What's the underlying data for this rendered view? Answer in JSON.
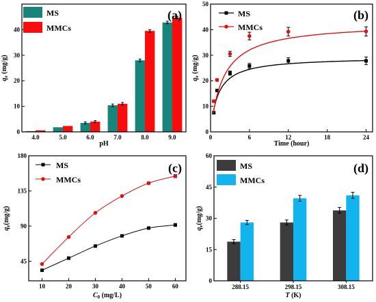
{
  "chart_data": [
    {
      "panel": "(a)",
      "type": "bar",
      "xlabel": "pH",
      "ylabel": "q_e (mg/g)",
      "ylabel_main": "q",
      "ylabel_sub": "e",
      "ylabel_rest": " (mg/g)",
      "ylim": [
        0,
        50
      ],
      "yticks": [
        0,
        10,
        20,
        30,
        40
      ],
      "categories": [
        "4.0",
        "5.0",
        "6.0",
        "7.0",
        "8.0",
        "9.0"
      ],
      "series": [
        {
          "name": "MS",
          "color": "#18847a",
          "values": [
            0.3,
            1.8,
            3.5,
            10.4,
            28.0,
            42.8
          ],
          "errors": [
            0,
            0,
            0.4,
            0.5,
            0.5,
            0.5
          ]
        },
        {
          "name": "MMCs",
          "color": "#f80c0c",
          "values": [
            0.6,
            2.3,
            4.0,
            11.0,
            39.5,
            44.7
          ],
          "errors": [
            0,
            0,
            0.4,
            0.5,
            0.5,
            0.5
          ]
        }
      ],
      "legend": "top-left",
      "grid": false
    },
    {
      "panel": "(b)",
      "type": "line",
      "xlabel": "Time (hour)",
      "ylabel": "q_e (mg/g)",
      "ylabel_main": "q",
      "ylabel_sub": "e",
      "ylabel_rest": " (mg/g)",
      "xlim": [
        0,
        25
      ],
      "ylim": [
        0,
        50
      ],
      "xticks": [
        0,
        6,
        12,
        18,
        24
      ],
      "yticks": [
        0,
        10,
        20,
        30,
        40,
        50
      ],
      "series": [
        {
          "name": "MS",
          "color": "#000000",
          "marker": "square",
          "x": [
            0.5,
            1,
            3,
            6,
            12,
            24
          ],
          "y": [
            7.5,
            16.2,
            23.0,
            25.8,
            27.8,
            27.8
          ],
          "errors": [
            0.5,
            0.5,
            0.8,
            1.0,
            1.2,
            1.5
          ],
          "fit": {
            "qe": 27.9,
            "k": 0.85
          }
        },
        {
          "name": "MMCs",
          "color": "#e01010",
          "marker": "circle",
          "x": [
            0.5,
            1,
            3,
            6,
            12,
            24
          ],
          "y": [
            12.0,
            20.3,
            30.5,
            37.5,
            39.2,
            39.3
          ],
          "errors": [
            0.5,
            0.5,
            1.0,
            1.5,
            1.7,
            1.8
          ],
          "fit": {
            "qe": 39.4,
            "k": 0.5
          }
        }
      ],
      "legend": "top-right",
      "grid": false
    },
    {
      "panel": "(c)",
      "type": "line",
      "xlabel_main": "C",
      "xlabel_sub": "0",
      "xlabel_rest": " (mg/L)",
      "ylabel_main": "q",
      "ylabel_sub": "e",
      "ylabel_rest": "(mg/g)",
      "xlim": [
        5,
        64
      ],
      "ylim": [
        20,
        180
      ],
      "xticks": [
        10,
        20,
        30,
        40,
        50,
        60
      ],
      "yticks": [
        45,
        90,
        135,
        180
      ],
      "series": [
        {
          "name": "MS",
          "color": "#000000",
          "marker": "square",
          "x": [
            10,
            20,
            30,
            40,
            50,
            60
          ],
          "y": [
            33.5,
            49.0,
            64.5,
            77.5,
            87.5,
            91.5
          ],
          "errors": [
            0,
            0,
            0,
            0,
            1.5,
            1.8
          ]
        },
        {
          "name": "MMCs",
          "color": "#e01010",
          "marker": "circle",
          "x": [
            10,
            20,
            30,
            40,
            50,
            60
          ],
          "y": [
            41.5,
            76.0,
            107.0,
            128.5,
            145.0,
            154.0
          ],
          "errors": [
            0,
            0,
            0,
            0,
            1.5,
            2.0
          ]
        }
      ],
      "legend": "top-left",
      "grid": false
    },
    {
      "panel": "(d)",
      "type": "bar",
      "xlabel_main": "T",
      "xlabel_rest": " (K)",
      "ylabel_main": "q",
      "ylabel_sub": "e",
      "ylabel_rest": "(mg/g)",
      "ylim": [
        0,
        60
      ],
      "yticks": [
        0,
        15,
        30,
        45,
        60
      ],
      "categories": [
        "288.15",
        "298.15",
        "308.15"
      ],
      "series": [
        {
          "name": "MS",
          "color": "#3c3c3c",
          "values": [
            18.8,
            28.0,
            33.8
          ],
          "errors": [
            1.0,
            1.2,
            1.4
          ]
        },
        {
          "name": "MMCs",
          "color": "#12b4f0",
          "values": [
            28.0,
            39.6,
            41.0
          ],
          "errors": [
            1.0,
            1.4,
            1.5
          ]
        }
      ],
      "legend": "top-left",
      "grid": false
    }
  ]
}
